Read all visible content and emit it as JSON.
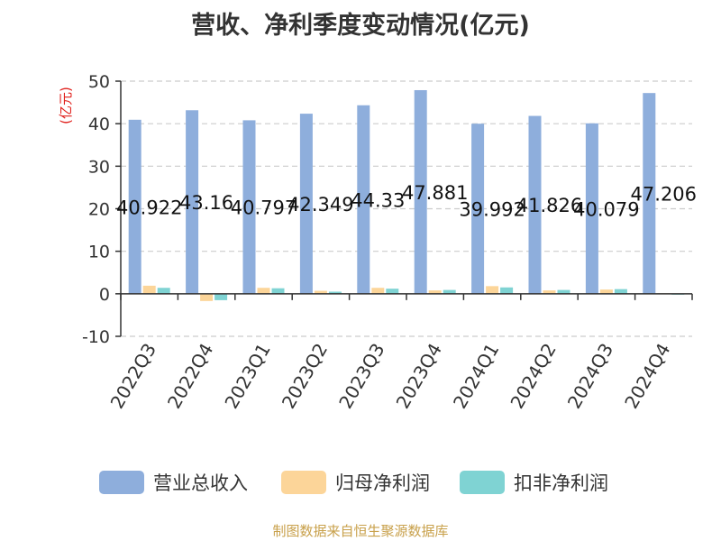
{
  "chart_data": {
    "type": "bar",
    "title": "营收、净利季度变动情况(亿元)",
    "ylabel": "(亿元)",
    "ylim": [
      -10,
      50
    ],
    "yticks": [
      -10,
      0,
      10,
      20,
      30,
      40,
      50
    ],
    "grid": true,
    "legend_position": "bottom",
    "categories": [
      "2022Q3",
      "2022Q4",
      "2023Q1",
      "2023Q2",
      "2023Q3",
      "2023Q4",
      "2024Q1",
      "2024Q2",
      "2024Q3",
      "2024Q4"
    ],
    "series": [
      {
        "name": "营业总收入",
        "color": "#8eaedc",
        "values": [
          40.922,
          43.16,
          40.797,
          42.349,
          44.33,
          47.881,
          39.992,
          41.826,
          40.079,
          47.206
        ],
        "labels": [
          "40.922",
          "43.16",
          "40.797",
          "42.349",
          "44.33",
          "47.881",
          "39.992",
          "41.826",
          "40.079",
          "47.206"
        ]
      },
      {
        "name": "归母净利润",
        "color": "#fcd599",
        "values": [
          1.9,
          -1.7,
          1.4,
          0.7,
          1.4,
          0.8,
          1.8,
          0.8,
          1.0,
          0.1
        ]
      },
      {
        "name": "扣非净利润",
        "color": "#7fd3d3",
        "values": [
          1.4,
          -1.5,
          1.3,
          0.5,
          1.2,
          0.9,
          1.5,
          0.9,
          1.1,
          -0.2
        ]
      }
    ]
  },
  "source_text": "制图数据来自恒生聚源数据库"
}
